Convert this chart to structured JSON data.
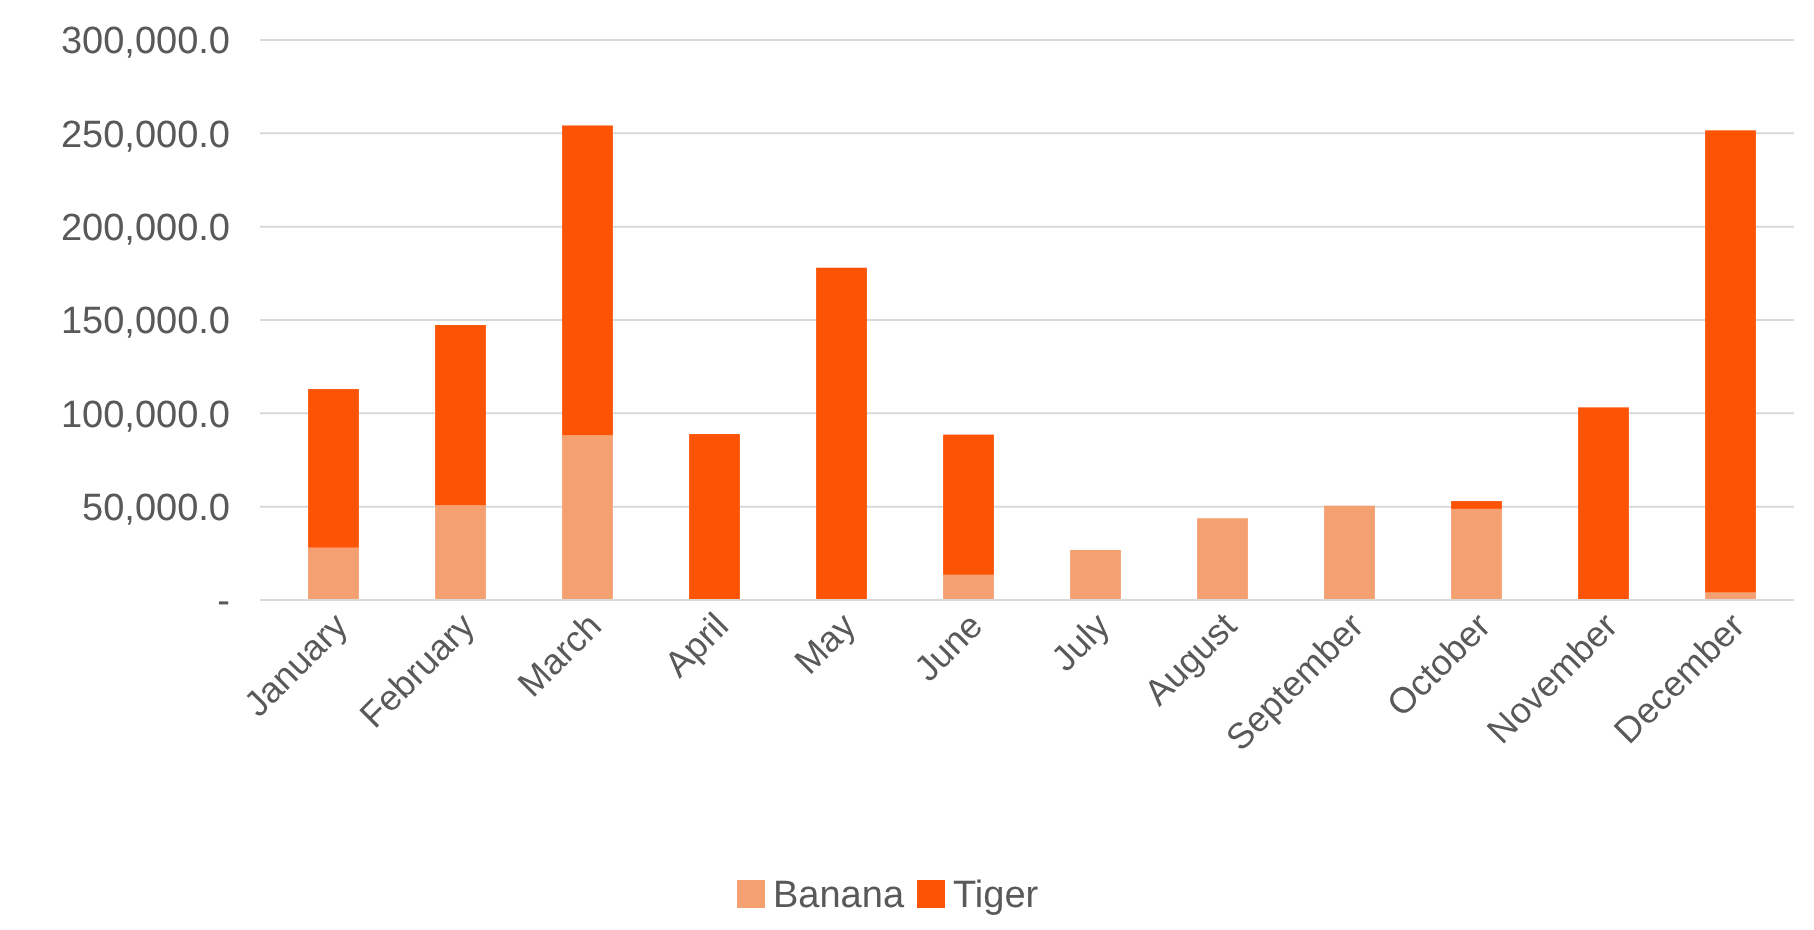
{
  "chart_data": {
    "type": "bar",
    "stacked": true,
    "categories": [
      "January",
      "February",
      "March",
      "April",
      "May",
      "June",
      "July",
      "August",
      "September",
      "October",
      "November",
      "December"
    ],
    "series": [
      {
        "name": "Banana",
        "color": "#f5a070",
        "values": [
          28000,
          50700,
          88200,
          0,
          0,
          13500,
          26800,
          43800,
          50500,
          48800,
          0,
          4000
        ]
      },
      {
        "name": "Tiger",
        "color": "#fc5305",
        "values": [
          85000,
          96600,
          166000,
          88900,
          178000,
          75100,
          0,
          0,
          0,
          4200,
          103200,
          247600
        ]
      }
    ],
    "ylim": [
      0,
      300000
    ],
    "yticks": [
      {
        "value": 0,
        "label": "-"
      },
      {
        "value": 50000,
        "label": "50,000.0"
      },
      {
        "value": 100000,
        "label": "100,000.0"
      },
      {
        "value": 150000,
        "label": "150,000.0"
      },
      {
        "value": 200000,
        "label": "200,000.0"
      },
      {
        "value": 250000,
        "label": "250,000.0"
      },
      {
        "value": 300000,
        "label": "300,000.0"
      }
    ],
    "grid": "y",
    "legend": "bottom"
  }
}
